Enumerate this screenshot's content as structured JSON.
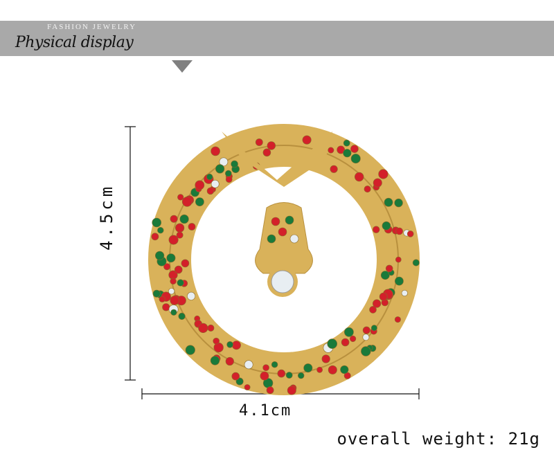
{
  "banner": {
    "subtitle": "FASHION JEWELRY",
    "title": "Physical display",
    "color": "#a9a9a9"
  },
  "dimensions": {
    "height": "4.5cm",
    "width": "4.1cm"
  },
  "weight": "overall weight: 21g",
  "product": {
    "description_colors": {
      "gold": "#d9b25a",
      "red": "#d3202a",
      "green": "#1a7a3a",
      "clear": "#e8eef2"
    }
  }
}
